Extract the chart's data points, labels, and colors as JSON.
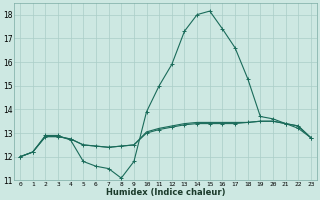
{
  "xlabel": "Humidex (Indice chaleur)",
  "x": [
    0,
    1,
    2,
    3,
    4,
    5,
    6,
    7,
    8,
    9,
    10,
    11,
    12,
    13,
    14,
    15,
    16,
    17,
    18,
    19,
    20,
    21,
    22,
    23
  ],
  "line1": [
    12.0,
    12.2,
    12.9,
    12.9,
    12.7,
    11.8,
    11.6,
    11.5,
    11.1,
    11.8,
    13.9,
    15.0,
    15.9,
    17.3,
    18.0,
    18.15,
    17.4,
    16.6,
    15.3,
    13.7,
    13.6,
    13.4,
    13.2,
    12.8
  ],
  "line2": [
    12.0,
    12.2,
    12.85,
    12.85,
    12.75,
    12.5,
    12.45,
    12.4,
    12.45,
    12.5,
    13.0,
    13.15,
    13.25,
    13.35,
    13.4,
    13.4,
    13.4,
    13.4,
    13.45,
    13.5,
    13.5,
    13.4,
    13.3,
    12.8
  ],
  "line3": [
    12.0,
    12.2,
    12.85,
    12.85,
    12.75,
    12.5,
    12.45,
    12.4,
    12.45,
    12.5,
    13.05,
    13.2,
    13.3,
    13.4,
    13.45,
    13.45,
    13.45,
    13.45,
    13.45,
    13.5,
    13.5,
    13.4,
    13.3,
    12.8
  ],
  "color": "#1a6b5a",
  "bg_color": "#cde8e2",
  "grid_color": "#aacec7",
  "ylim": [
    11,
    18.5
  ],
  "xlim": [
    -0.5,
    23.5
  ],
  "yticks": [
    11,
    12,
    13,
    14,
    15,
    16,
    17,
    18
  ]
}
